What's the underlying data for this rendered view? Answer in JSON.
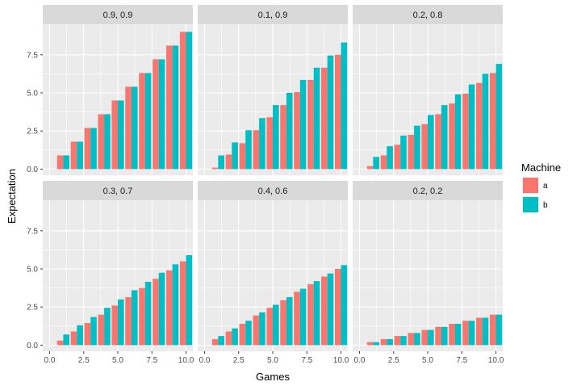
{
  "chart_data": {
    "type": "bar",
    "layout": "facet-grid 2x3",
    "xlabel": "Games",
    "ylabel": "Expectation",
    "xlim": [
      -0.5,
      10.5
    ],
    "ylim": [
      -0.4,
      9.5
    ],
    "x_ticks": [
      0.0,
      2.5,
      5.0,
      7.5,
      10.0
    ],
    "x_tick_labels": [
      "0.0",
      "2.5",
      "5.0",
      "7.5",
      "10.0"
    ],
    "y_ticks": [
      0.0,
      2.5,
      5.0,
      7.5
    ],
    "y_tick_labels": [
      "0.0",
      "2.5",
      "5.0",
      "7.5"
    ],
    "grid": true,
    "legend": {
      "title": "Machine",
      "placement": "right",
      "entries": [
        {
          "name": "a",
          "color": "#F8766D"
        },
        {
          "name": "b",
          "color": "#00BFC4"
        }
      ]
    },
    "x": [
      1,
      2,
      3,
      4,
      5,
      6,
      7,
      8,
      9,
      10
    ],
    "facets": [
      {
        "label": "0.9, 0.9",
        "series": [
          {
            "name": "a",
            "values": [
              0.9,
              1.8,
              2.7,
              3.6,
              4.5,
              5.4,
              6.3,
              7.2,
              8.1,
              9.0
            ]
          },
          {
            "name": "b",
            "values": [
              0.9,
              1.8,
              2.7,
              3.6,
              4.5,
              5.4,
              6.3,
              7.2,
              8.1,
              9.0
            ]
          }
        ]
      },
      {
        "label": "0.1, 0.9",
        "series": [
          {
            "name": "a",
            "values": [
              0.1,
              0.95,
              1.7,
              2.55,
              3.4,
              4.2,
              5.05,
              5.85,
              6.65,
              7.5
            ]
          },
          {
            "name": "b",
            "values": [
              0.9,
              1.75,
              2.55,
              3.35,
              4.2,
              5.0,
              5.85,
              6.65,
              7.45,
              8.3
            ]
          }
        ]
      },
      {
        "label": "0.2, 0.8",
        "series": [
          {
            "name": "a",
            "values": [
              0.2,
              0.9,
              1.6,
              2.25,
              2.95,
              3.6,
              4.3,
              4.95,
              5.65,
              6.3
            ]
          },
          {
            "name": "b",
            "values": [
              0.8,
              1.5,
              2.2,
              2.85,
              3.55,
              4.2,
              4.9,
              5.55,
              6.25,
              6.9
            ]
          }
        ]
      },
      {
        "label": "0.3, 0.7",
        "series": [
          {
            "name": "a",
            "values": [
              0.3,
              0.9,
              1.45,
              2.0,
              2.6,
              3.15,
              3.75,
              4.35,
              4.9,
              5.5
            ]
          },
          {
            "name": "b",
            "values": [
              0.7,
              1.3,
              1.85,
              2.45,
              3.0,
              3.6,
              4.15,
              4.75,
              5.3,
              5.9
            ]
          }
        ]
      },
      {
        "label": "0.4, 0.6",
        "series": [
          {
            "name": "a",
            "values": [
              0.4,
              0.9,
              1.4,
              1.95,
              2.45,
              2.95,
              3.5,
              4.0,
              4.5,
              5.0
            ]
          },
          {
            "name": "b",
            "values": [
              0.6,
              1.1,
              1.6,
              2.15,
              2.65,
              3.15,
              3.7,
              4.2,
              4.7,
              5.25
            ]
          }
        ]
      },
      {
        "label": "0.2, 0.2",
        "series": [
          {
            "name": "a",
            "values": [
              0.2,
              0.4,
              0.6,
              0.8,
              1.0,
              1.2,
              1.4,
              1.6,
              1.8,
              2.0
            ]
          },
          {
            "name": "b",
            "values": [
              0.2,
              0.4,
              0.6,
              0.8,
              1.0,
              1.2,
              1.4,
              1.6,
              1.8,
              2.0
            ]
          }
        ]
      }
    ]
  }
}
